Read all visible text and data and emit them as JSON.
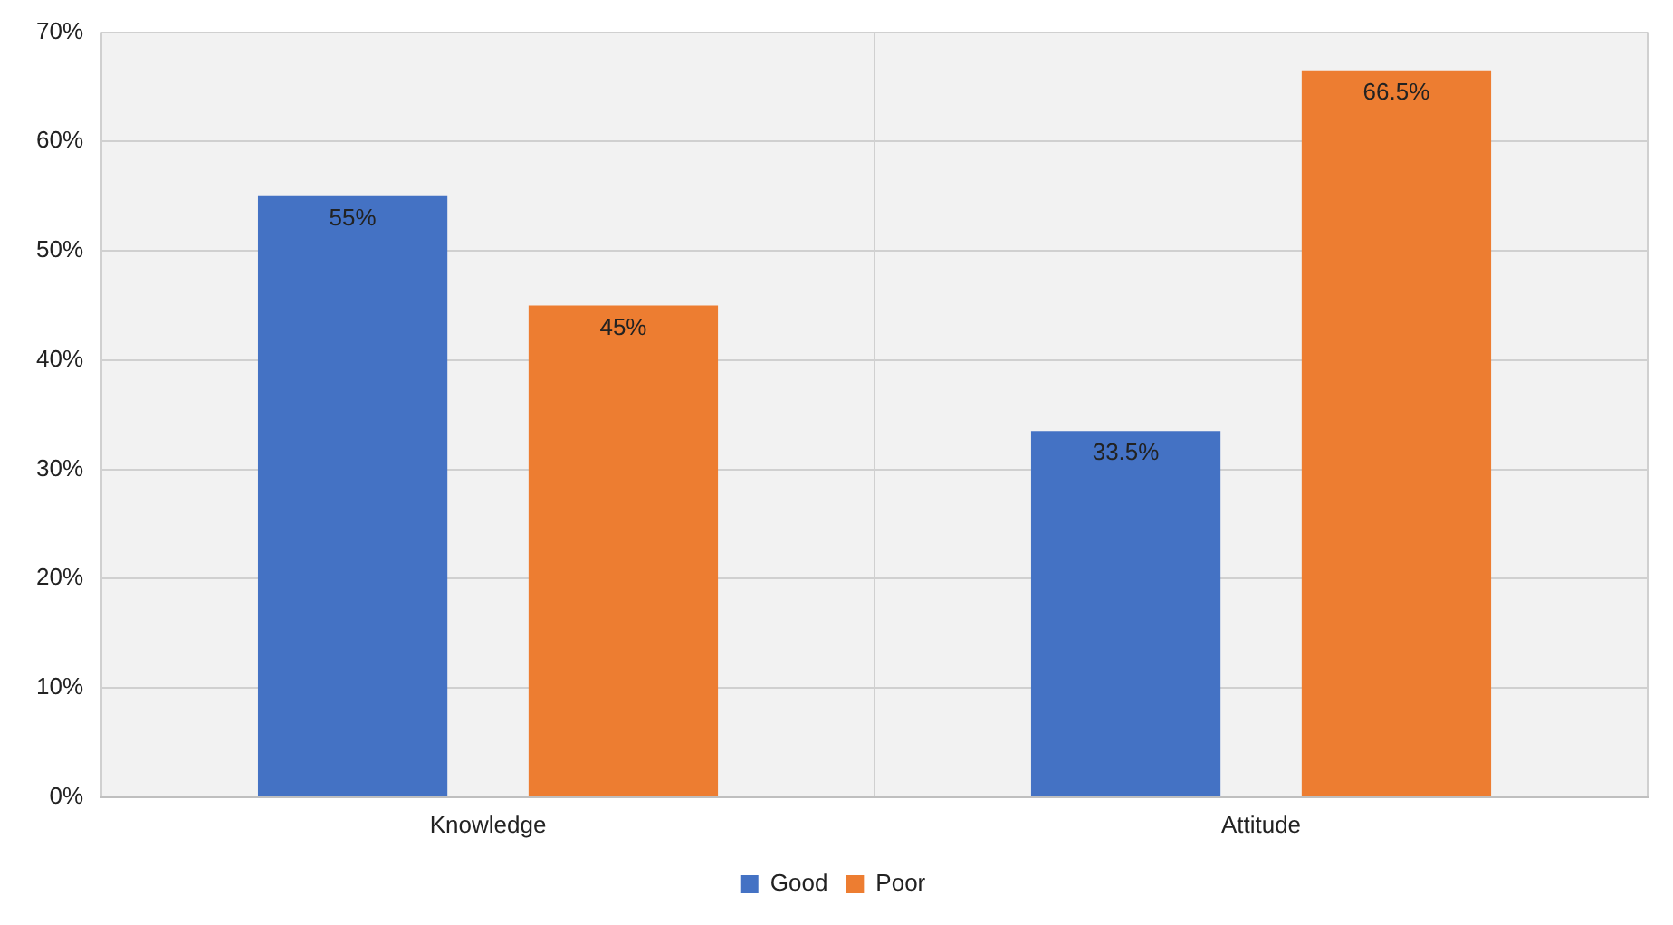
{
  "chart_data": {
    "type": "bar",
    "categories": [
      "Knowledge",
      "Attitude"
    ],
    "series": [
      {
        "name": "Good",
        "color": "#4472c4",
        "values": [
          55,
          33.5
        ],
        "value_labels": [
          "55%",
          "33.5%"
        ]
      },
      {
        "name": "Poor",
        "color": "#ed7d31",
        "values": [
          45,
          66.5
        ],
        "value_labels": [
          "45%",
          "66.5%"
        ]
      }
    ],
    "ylim": [
      0,
      70
    ],
    "yticks": [
      {
        "value": 0,
        "label": "0%"
      },
      {
        "value": 10,
        "label": "10%"
      },
      {
        "value": 20,
        "label": "20%"
      },
      {
        "value": 30,
        "label": "30%"
      },
      {
        "value": 40,
        "label": "40%"
      },
      {
        "value": 50,
        "label": "50%"
      },
      {
        "value": 60,
        "label": "60%"
      },
      {
        "value": 70,
        "label": "70%"
      }
    ],
    "grid": true,
    "legend": "bottom"
  }
}
